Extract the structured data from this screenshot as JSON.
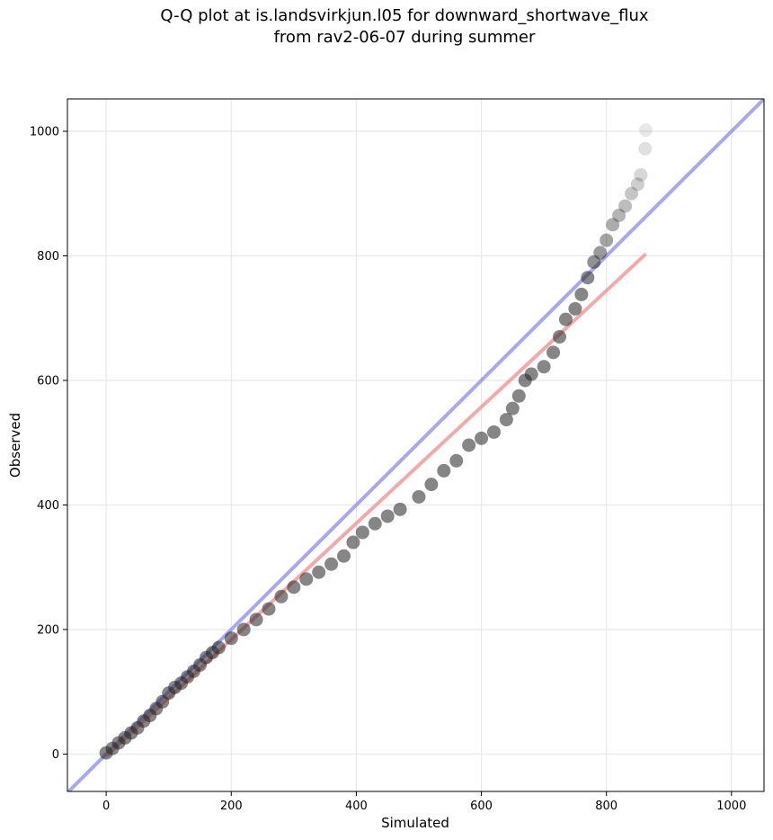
{
  "chart_data": {
    "type": "scatter",
    "title_line1": "Q-Q plot at is.landsvirkjun.l05 for downward_shortwave_flux",
    "title_line2": "from rav2-06-07 during summer",
    "xlabel": "Simulated",
    "ylabel": "Observed",
    "xlim": [
      -62,
      1052
    ],
    "ylim": [
      -60,
      1052
    ],
    "xticks": [
      0,
      200,
      400,
      600,
      800,
      1000
    ],
    "yticks": [
      0,
      200,
      400,
      600,
      800,
      1000
    ],
    "grid": true,
    "identity_line": {
      "color": "#8a8aee",
      "from": [
        -62,
        -62
      ],
      "to": [
        1052,
        1052
      ]
    },
    "fit_line": {
      "color": "#f29a9a",
      "from": [
        0,
        -3
      ],
      "to": [
        863,
        803
      ]
    },
    "quantile_curve": [
      [
        0,
        2
      ],
      [
        10,
        9
      ],
      [
        20,
        18
      ],
      [
        30,
        26
      ],
      [
        40,
        34
      ],
      [
        50,
        42
      ],
      [
        60,
        53
      ],
      [
        70,
        62
      ],
      [
        80,
        73
      ],
      [
        90,
        84
      ],
      [
        100,
        98
      ],
      [
        110,
        107
      ],
      [
        120,
        114
      ],
      [
        130,
        124
      ],
      [
        140,
        133
      ],
      [
        150,
        143
      ],
      [
        160,
        155
      ],
      [
        170,
        163
      ],
      [
        180,
        171
      ],
      [
        200,
        186
      ],
      [
        220,
        200
      ],
      [
        240,
        216
      ],
      [
        260,
        233
      ],
      [
        280,
        253
      ],
      [
        300,
        268
      ],
      [
        320,
        281
      ],
      [
        340,
        292
      ],
      [
        360,
        305
      ],
      [
        380,
        318
      ],
      [
        395,
        340
      ],
      [
        410,
        356
      ],
      [
        430,
        370
      ],
      [
        450,
        382
      ],
      [
        470,
        393
      ],
      [
        500,
        413
      ],
      [
        520,
        433
      ],
      [
        540,
        455
      ],
      [
        560,
        471
      ],
      [
        580,
        496
      ],
      [
        600,
        507
      ],
      [
        620,
        517
      ],
      [
        640,
        537
      ],
      [
        650,
        555
      ],
      [
        660,
        575
      ],
      [
        670,
        600
      ],
      [
        680,
        610
      ],
      [
        700,
        622
      ],
      [
        715,
        645
      ],
      [
        725,
        670
      ],
      [
        735,
        698
      ],
      [
        750,
        715
      ],
      [
        760,
        738
      ],
      [
        770,
        765
      ],
      [
        780,
        790
      ],
      [
        790,
        805
      ],
      [
        800,
        825
      ],
      [
        810,
        850
      ],
      [
        820,
        865
      ],
      [
        830,
        880
      ],
      [
        840,
        900
      ],
      [
        850,
        915
      ],
      [
        855,
        930
      ],
      [
        862,
        972
      ],
      [
        863,
        1002
      ]
    ]
  }
}
